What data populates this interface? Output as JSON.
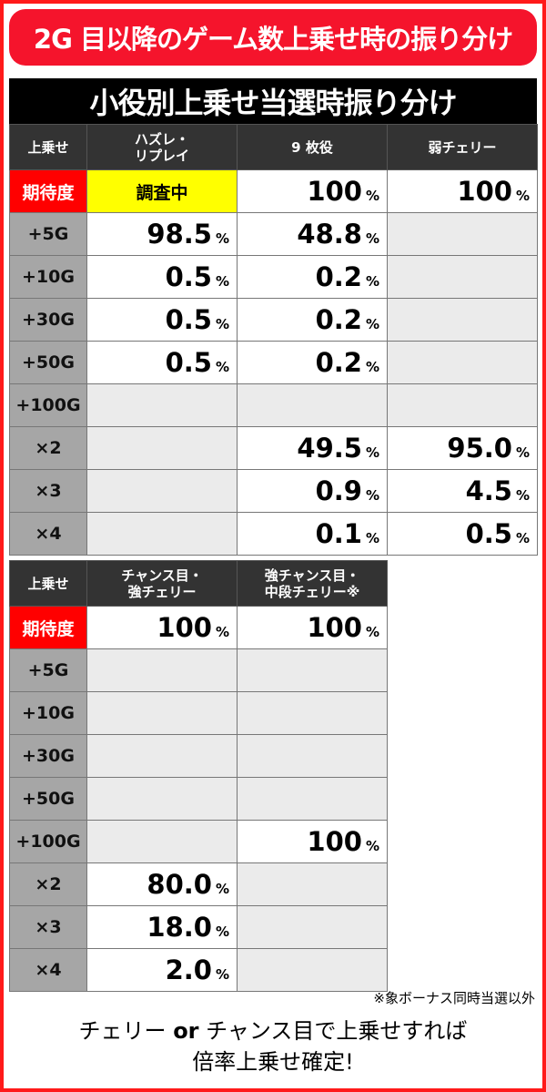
{
  "title": "2G 目以降のゲーム数上乗せ時の振り分け",
  "subtitle": "小役別上乗せ当選時振り分け",
  "colors": {
    "title_bg": "#f5142c",
    "expect_label": "#ff0000",
    "expect_row": "#ffff00",
    "label_col": "#a6a6a6",
    "empty": "#ebebeb"
  },
  "table1": {
    "headers": [
      "上乗せ",
      "ハズレ・\nリプレイ",
      "9 枚役",
      "弱チェリー"
    ],
    "rows": [
      {
        "label": "期待度",
        "cells": [
          {
            "t": "調査中"
          },
          {
            "v": "100",
            "u": "%"
          },
          {
            "v": "100",
            "u": "%"
          }
        ]
      },
      {
        "label": "+5G",
        "cells": [
          {
            "v": "98.5",
            "u": "%"
          },
          {
            "v": "48.8",
            "u": "%"
          },
          {}
        ]
      },
      {
        "label": "+10G",
        "cells": [
          {
            "v": "0.5",
            "u": "%"
          },
          {
            "v": "0.2",
            "u": "%"
          },
          {}
        ]
      },
      {
        "label": "+30G",
        "cells": [
          {
            "v": "0.5",
            "u": "%"
          },
          {
            "v": "0.2",
            "u": "%"
          },
          {}
        ]
      },
      {
        "label": "+50G",
        "cells": [
          {
            "v": "0.5",
            "u": "%"
          },
          {
            "v": "0.2",
            "u": "%"
          },
          {}
        ]
      },
      {
        "label": "+100G",
        "cells": [
          {},
          {},
          {}
        ]
      },
      {
        "label": "×2",
        "cells": [
          {},
          {
            "v": "49.5",
            "u": "%"
          },
          {
            "v": "95.0",
            "u": "%"
          }
        ]
      },
      {
        "label": "×3",
        "cells": [
          {},
          {
            "v": "0.9",
            "u": "%"
          },
          {
            "v": "4.5",
            "u": "%"
          }
        ]
      },
      {
        "label": "×4",
        "cells": [
          {},
          {
            "v": "0.1",
            "u": "%"
          },
          {
            "v": "0.5",
            "u": "%"
          }
        ]
      }
    ]
  },
  "table2": {
    "headers": [
      "上乗せ",
      "チャンス目・\n強チェリー",
      "強チャンス目・\n中段チェリー※"
    ],
    "rows": [
      {
        "label": "期待度",
        "cells": [
          {
            "v": "100",
            "u": "%"
          },
          {
            "v": "100",
            "u": "%"
          }
        ]
      },
      {
        "label": "+5G",
        "cells": [
          {},
          {}
        ]
      },
      {
        "label": "+10G",
        "cells": [
          {},
          {}
        ]
      },
      {
        "label": "+30G",
        "cells": [
          {},
          {}
        ]
      },
      {
        "label": "+50G",
        "cells": [
          {},
          {}
        ]
      },
      {
        "label": "+100G",
        "cells": [
          {},
          {
            "v": "100",
            "u": "%"
          }
        ]
      },
      {
        "label": "×2",
        "cells": [
          {
            "v": "80.0",
            "u": "%"
          },
          {}
        ]
      },
      {
        "label": "×3",
        "cells": [
          {
            "v": "18.0",
            "u": "%"
          },
          {}
        ]
      },
      {
        "label": "×4",
        "cells": [
          {
            "v": "2.0",
            "u": "%"
          },
          {}
        ]
      }
    ]
  },
  "footnote": "※象ボーナス同時当選以外",
  "conclusion": {
    "line1_a": "チェリー ",
    "line1_or": "or",
    "line1_b": " チャンス目で上乗せすれば",
    "line2": "倍率上乗せ確定!"
  }
}
